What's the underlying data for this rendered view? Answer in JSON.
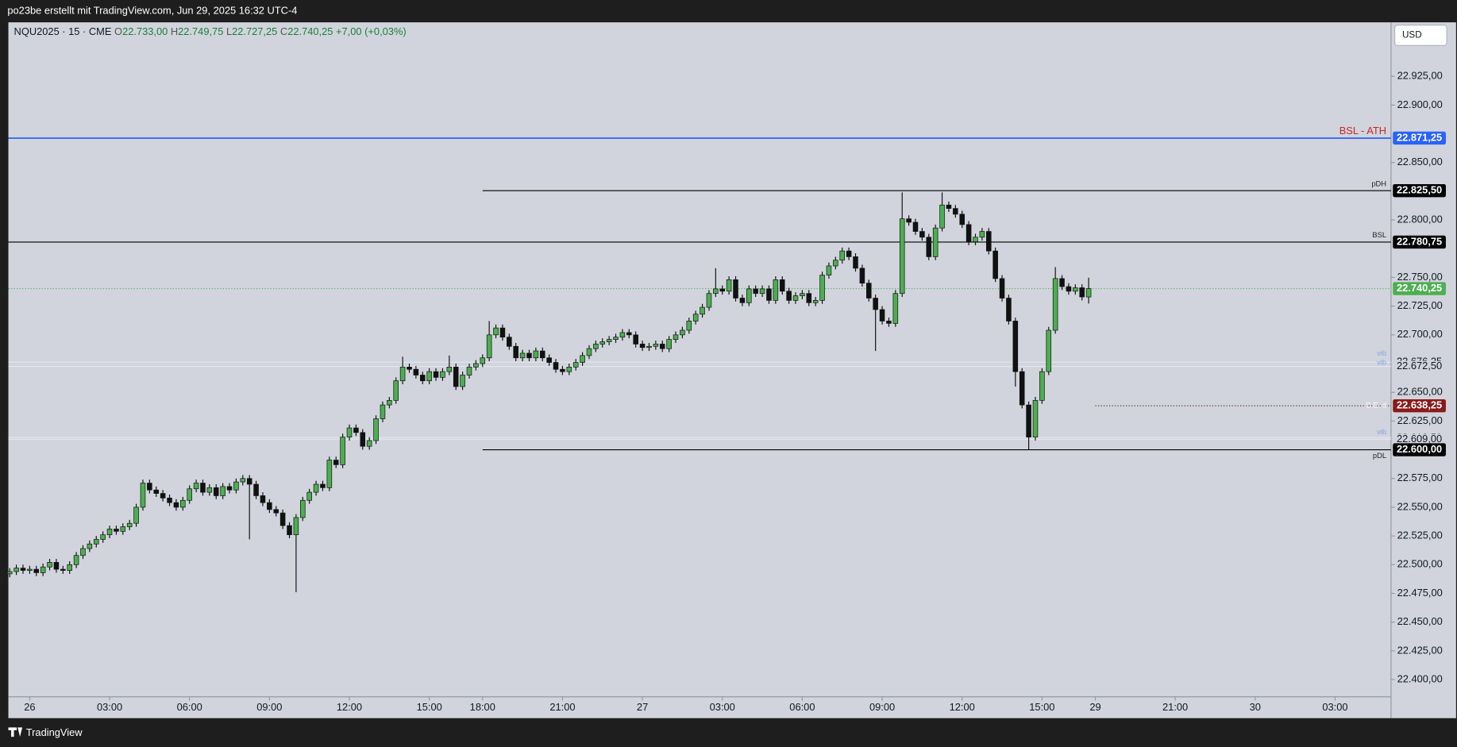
{
  "header": {
    "caption": "po23be erstellt mit TradingView.com, Jun 29, 2025 16:32 UTC-4"
  },
  "legend": {
    "symbol": "NQU2025 · 15 · CME",
    "ohlc": [
      {
        "key": "O",
        "value": 22733,
        "label": "22.733,00"
      },
      {
        "key": "H",
        "value": 22749.75,
        "label": "22.749,75"
      },
      {
        "key": "L",
        "value": 22727.25,
        "label": "22.727,25"
      },
      {
        "key": "C",
        "value": 22740.25,
        "label": "22.740,25"
      }
    ],
    "change": {
      "value": 7,
      "label": "+7,00"
    },
    "change_pct": {
      "value": 0.03,
      "label": "(+0,03%)"
    }
  },
  "currency": "USD",
  "footer": "TradingView",
  "chart_data": {
    "type": "candlestick",
    "up_color": "#4caf50",
    "down_color": "#111111",
    "grid": false,
    "xlim": [
      -0.2,
      207.4
    ],
    "ylim": [
      22385,
      22972
    ],
    "xticks": [
      {
        "value": 3,
        "label": "26"
      },
      {
        "value": 15,
        "label": "03:00"
      },
      {
        "value": 27,
        "label": "06:00"
      },
      {
        "value": 39,
        "label": "09:00"
      },
      {
        "value": 51,
        "label": "12:00"
      },
      {
        "value": 63,
        "label": "15:00"
      },
      {
        "value": 71,
        "label": "18:00"
      },
      {
        "value": 83,
        "label": "21:00"
      },
      {
        "value": 95,
        "label": "27"
      },
      {
        "value": 107,
        "label": "03:00"
      },
      {
        "value": 119,
        "label": "06:00"
      },
      {
        "value": 131,
        "label": "09:00"
      },
      {
        "value": 143,
        "label": "12:00"
      },
      {
        "value": 155,
        "label": "15:00"
      },
      {
        "value": 163,
        "label": "29"
      },
      {
        "value": 175,
        "label": "21:00"
      },
      {
        "value": 187,
        "label": "30"
      },
      {
        "value": 199,
        "label": "03:00"
      }
    ],
    "yticks": [
      {
        "value": 22925,
        "label": "22.925,00"
      },
      {
        "value": 22900,
        "label": "22.900,00"
      },
      {
        "value": 22850,
        "label": "22.850,00"
      },
      {
        "value": 22800,
        "label": "22.800,00"
      },
      {
        "value": 22750,
        "label": "22.750,00"
      },
      {
        "value": 22725,
        "label": "22.725,00"
      },
      {
        "value": 22700,
        "label": "22.700,00"
      },
      {
        "value": 22650,
        "label": "22.650,00"
      },
      {
        "value": 22625,
        "label": "22.625,00"
      },
      {
        "value": 22575,
        "label": "22.575,00"
      },
      {
        "value": 22550,
        "label": "22.550,00"
      },
      {
        "value": 22525,
        "label": "22.525,00"
      },
      {
        "value": 22500,
        "label": "22.500,00"
      },
      {
        "value": 22475,
        "label": "22.475,00"
      },
      {
        "value": 22450,
        "label": "22.450,00"
      },
      {
        "value": 22425,
        "label": "22.425,00"
      },
      {
        "value": 22400,
        "label": "22.400,00"
      }
    ],
    "levels": [
      {
        "name": "BSL - ATH",
        "value": 22871.25,
        "label": "22.871,25",
        "line_color": "#2962ff",
        "box_color": "#2962ff",
        "name_color": "#c62828",
        "line_style": "solid"
      },
      {
        "name": "pDH",
        "value": 22825.5,
        "label": "22.825,50",
        "line_color": "#000000",
        "box_color": "#000000",
        "name_color": "#222222",
        "line_style": "solid"
      },
      {
        "name": "BSL",
        "value": 22780.75,
        "label": "22.780,75",
        "line_color": "#000000",
        "box_color": "#000000",
        "name_color": "#222222",
        "line_style": "solid"
      },
      {
        "value": 22740.25,
        "label": "22.740,25",
        "line_color": "#4caf50",
        "box_color": "#4caf50",
        "line_style": "dotted"
      },
      {
        "name": "vib",
        "value": 22676.25,
        "label": "22.676,25",
        "line_color": "#e3e6ee",
        "name_color": "#7fa6e6",
        "line_style": "solid"
      },
      {
        "name": "vib",
        "value": 22672.5,
        "label": "22.672,50",
        "line_color": "#e3e6ee",
        "name_color": "#7fa6e6",
        "line_style": "solid"
      },
      {
        "name": "C.E. d",
        "value": 22638.25,
        "label": "22.638,25",
        "line_color": "#5a1010",
        "box_color": "#8b1a1a",
        "name_color": "#ffffff",
        "line_style": "dotted"
      },
      {
        "name": "vib",
        "value": 22610.5,
        "label": "22.610,50",
        "line_color": "#e3e6ee",
        "name_color": "#7fa6e6",
        "line_style": "solid"
      },
      {
        "value": 22609,
        "label": "22.609,00",
        "line_color": "#e3e6ee",
        "line_style": "solid"
      },
      {
        "name": "pDL",
        "value": 22600,
        "label": "22.600,00",
        "line_color": "#000000",
        "box_color": "#000000",
        "name_color": "#222222",
        "line_style": "solid"
      }
    ],
    "open": [
      22492,
      22494,
      22497,
      22495,
      22496,
      22493,
      22498,
      22502,
      22496,
      22495,
      22500,
      22508,
      22514,
      22518,
      22522,
      22526,
      22531,
      22529,
      22533,
      22536,
      22550,
      22571,
      22565,
      22562,
      22558,
      22554,
      22550,
      22556,
      22566,
      22571,
      22563,
      22567,
      22560,
      22568,
      22565,
      22572,
      22575,
      22570,
      22560,
      22554,
      22548,
      22545,
      22534,
      22526,
      22541,
      22556,
      22563,
      22570,
      22567,
      22591,
      22587,
      22611,
      22619,
      22615,
      22603,
      22608,
      22627,
      22639,
      22643,
      22660,
      22672,
      22670,
      22665,
      22660,
      22668,
      22663,
      22668,
      22672,
      22655,
      22665,
      22672,
      22675,
      22680,
      22700,
      22706,
      22698,
      22690,
      22680,
      22684,
      22680,
      22686,
      22680,
      22676,
      22670,
      22668,
      22672,
      22676,
      22682,
      22688,
      22692,
      22694,
      22696,
      22698,
      22702,
      22700,
      22692,
      22689,
      22690,
      22692,
      22688,
      22696,
      22700,
      22704,
      22712,
      22718,
      22724,
      22736,
      22740,
      22738,
      22748,
      22732,
      22728,
      22740,
      22736,
      22740,
      22730,
      22748,
      22738,
      22730,
      22734,
      22736,
      22728,
      22730,
      22752,
      22760,
      22765,
      22773,
      22768,
      22758,
      22745,
      22732,
      22722,
      22712,
      22710,
      22736,
      22801,
      22798,
      22790,
      22785,
      22768,
      22793,
      22813,
      22810,
      22805,
      22796,
      22781,
      22785,
      22790,
      22773,
      22749,
      22732,
      22712,
      22668,
      22639,
      22611,
      22643,
      22668,
      22704,
      22749,
      22742,
      22738,
      22741,
      22733
    ],
    "high": [
      22497,
      22500,
      22500,
      22499,
      22499,
      22501,
      22505,
      22505,
      22499,
      22503,
      22511,
      22517,
      22521,
      22525,
      22529,
      22534,
      22534,
      22536,
      22539,
      22553,
      22574,
      22574,
      22568,
      22565,
      22561,
      22557,
      22559,
      22569,
      22574,
      22574,
      22570,
      22570,
      22571,
      22571,
      22575,
      22578,
      22578,
      22573,
      22563,
      22557,
      22551,
      22548,
      22537,
      22544,
      22559,
      22566,
      22573,
      22573,
      22594,
      22594,
      22614,
      22622,
      22622,
      22618,
      22611,
      22630,
      22642,
      22646,
      22663,
      22681,
      22675,
      22673,
      22668,
      22671,
      22671,
      22671,
      22682,
      22675,
      22668,
      22675,
      22678,
      22683,
      22712,
      22709,
      22709,
      22701,
      22693,
      22687,
      22687,
      22689,
      22689,
      22683,
      22679,
      22673,
      22675,
      22679,
      22685,
      22691,
      22695,
      22697,
      22699,
      22701,
      22705,
      22705,
      22703,
      22695,
      22693,
      22695,
      22695,
      22699,
      22703,
      22707,
      22715,
      22721,
      22727,
      22739,
      22758,
      22743,
      22751,
      22751,
      22735,
      22743,
      22743,
      22743,
      22743,
      22751,
      22751,
      22741,
      22737,
      22739,
      22739,
      22733,
      22755,
      22763,
      22768,
      22776,
      22776,
      22771,
      22761,
      22748,
      22735,
      22725,
      22715,
      22739,
      22824,
      22804,
      22801,
      22793,
      22788,
      22796,
      22824,
      22816,
      22813,
      22808,
      22799,
      22788,
      22793,
      22793,
      22776,
      22752,
      22735,
      22715,
      22671,
      22642,
      22646,
      22671,
      22707,
      22759,
      22752,
      22745,
      22744,
      22744,
      22749.75
    ],
    "low": [
      22489,
      22491,
      22492,
      22492,
      22490,
      22490,
      22495,
      22493,
      22492,
      22492,
      22497,
      22505,
      22511,
      22515,
      22519,
      22523,
      22526,
      22526,
      22530,
      22533,
      22547,
      22562,
      22559,
      22555,
      22551,
      22547,
      22547,
      22553,
      22563,
      22560,
      22560,
      22557,
      22557,
      22562,
      22562,
      22569,
      22522,
      22557,
      22551,
      22545,
      22542,
      22531,
      22523,
      22476,
      22538,
      22553,
      22560,
      22564,
      22564,
      22584,
      22584,
      22608,
      22612,
      22600,
      22600,
      22605,
      22624,
      22636,
      22640,
      22657,
      22667,
      22662,
      22657,
      22657,
      22660,
      22660,
      22665,
      22652,
      22652,
      22662,
      22669,
      22672,
      22677,
      22697,
      22695,
      22687,
      22677,
      22677,
      22677,
      22677,
      22677,
      22673,
      22667,
      22665,
      22665,
      22669,
      22673,
      22679,
      22685,
      22689,
      22691,
      22693,
      22695,
      22697,
      22689,
      22686,
      22686,
      22687,
      22685,
      22685,
      22693,
      22697,
      22701,
      22709,
      22715,
      22721,
      22733,
      22735,
      22735,
      22729,
      22725,
      22725,
      22733,
      22733,
      22727,
      22727,
      22735,
      22727,
      22727,
      22731,
      22725,
      22725,
      22727,
      22749,
      22757,
      22762,
      22765,
      22755,
      22742,
      22729,
      22686,
      22709,
      22707,
      22707,
      22733,
      22795,
      22787,
      22782,
      22765,
      22765,
      22790,
      22807,
      22802,
      22793,
      22778,
      22778,
      22782,
      22770,
      22746,
      22729,
      22709,
      22655,
      22636,
      22600,
      22608,
      22640,
      22665,
      22701,
      22739,
      22735,
      22735,
      22730,
      22727.25
    ],
    "close": [
      22494,
      22497,
      22495,
      22496,
      22493,
      22498,
      22502,
      22496,
      22495,
      22500,
      22508,
      22514,
      22518,
      22522,
      22526,
      22531,
      22529,
      22533,
      22536,
      22550,
      22571,
      22565,
      22562,
      22558,
      22554,
      22550,
      22556,
      22566,
      22571,
      22563,
      22567,
      22560,
      22568,
      22565,
      22572,
      22575,
      22570,
      22560,
      22554,
      22548,
      22545,
      22534,
      22526,
      22541,
      22556,
      22563,
      22570,
      22567,
      22591,
      22587,
      22611,
      22619,
      22615,
      22603,
      22608,
      22627,
      22639,
      22643,
      22660,
      22672,
      22670,
      22665,
      22660,
      22668,
      22663,
      22668,
      22672,
      22655,
      22665,
      22672,
      22675,
      22680,
      22700,
      22706,
      22698,
      22690,
      22680,
      22684,
      22680,
      22686,
      22680,
      22676,
      22670,
      22668,
      22672,
      22676,
      22682,
      22688,
      22692,
      22694,
      22696,
      22698,
      22702,
      22700,
      22692,
      22689,
      22690,
      22692,
      22688,
      22696,
      22700,
      22704,
      22712,
      22718,
      22724,
      22736,
      22740,
      22738,
      22748,
      22732,
      22728,
      22740,
      22736,
      22740,
      22730,
      22748,
      22738,
      22730,
      22734,
      22736,
      22728,
      22730,
      22752,
      22760,
      22765,
      22773,
      22768,
      22758,
      22745,
      22732,
      22722,
      22712,
      22710,
      22736,
      22801,
      22798,
      22790,
      22785,
      22768,
      22793,
      22813,
      22810,
      22805,
      22796,
      22781,
      22785,
      22790,
      22773,
      22749,
      22732,
      22712,
      22668,
      22639,
      22611,
      22643,
      22668,
      22704,
      22749,
      22742,
      22738,
      22741,
      22733,
      22740.25
    ]
  }
}
